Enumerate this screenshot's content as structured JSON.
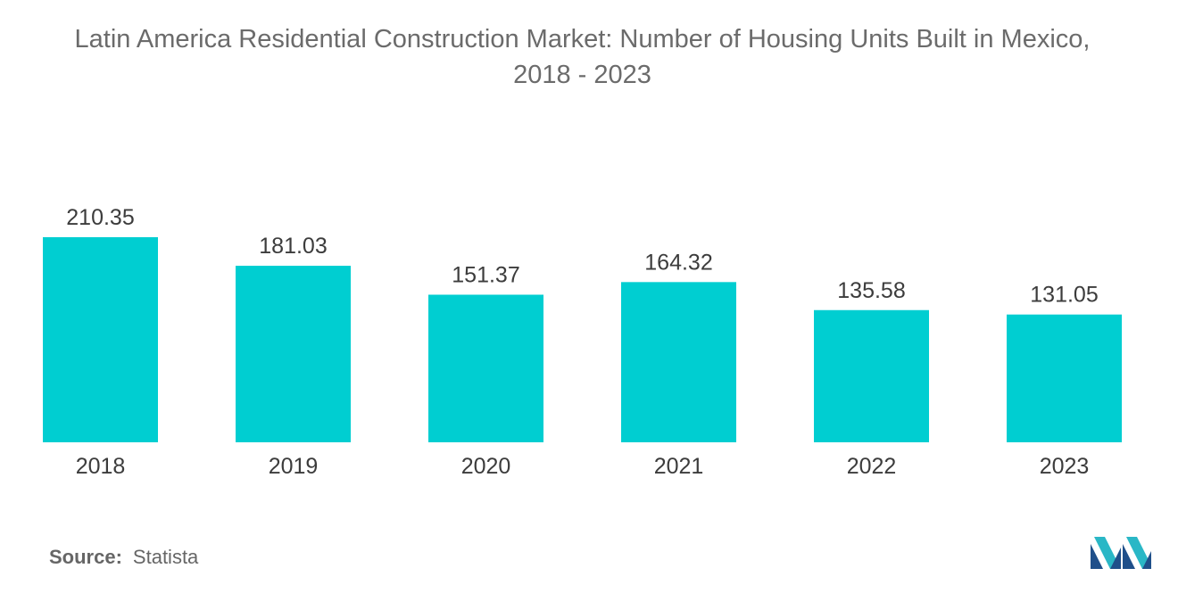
{
  "chart_data": {
    "type": "bar",
    "title_line1": "Latin America Residential Construction Market: Number of Housing Units Built in Mexico,",
    "title_line2": "2018 - 2023",
    "categories": [
      "2018",
      "2019",
      "2020",
      "2021",
      "2022",
      "2023"
    ],
    "values": [
      210.35,
      181.03,
      151.37,
      164.32,
      135.58,
      131.05
    ],
    "value_labels": [
      "210.35",
      "181.03",
      "151.37",
      "164.32",
      "135.58",
      "131.05"
    ],
    "xlabel": "",
    "ylabel": "",
    "ylim": [
      0,
      210.35
    ],
    "grid": false,
    "legend": "none",
    "bar_color": "#00CED1",
    "label_color": "#3c3c3c"
  },
  "source": {
    "label": "Source:",
    "value": "Statista"
  },
  "logo": {
    "icon": "mordor-intelligence-logo-icon",
    "colors": [
      "#1f4f8a",
      "#2ab7c6"
    ]
  }
}
